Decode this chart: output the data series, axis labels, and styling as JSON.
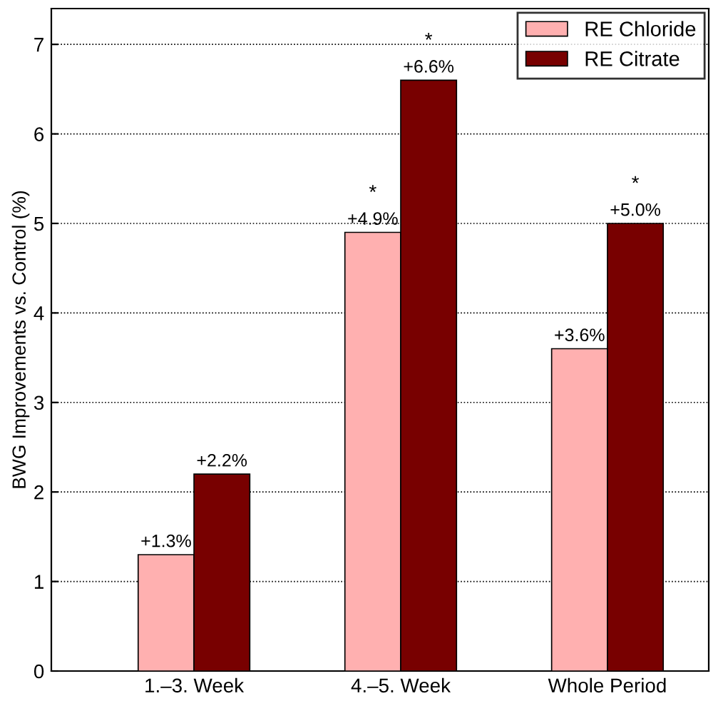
{
  "chart_data": {
    "type": "bar",
    "ylabel": "BWG Improvements vs. Control (%)",
    "categories": [
      "1.–3. Week",
      "4.–5. Week",
      "Whole Period"
    ],
    "series": [
      {
        "name": "RE Chloride",
        "color": "#ffb0b0",
        "values": [
          1.3,
          4.9,
          3.6
        ],
        "value_labels": [
          "+1.3%",
          "+4.9%",
          "+3.6%"
        ]
      },
      {
        "name": "RE Citrate",
        "color": "#780000",
        "values": [
          2.2,
          6.6,
          5.0
        ],
        "value_labels": [
          "+2.2%",
          "+6.6%",
          "+5.0%"
        ]
      }
    ],
    "annotations": [
      {
        "text": "*",
        "x": "4.–5. Week",
        "y": 4.9
      },
      {
        "text": "*",
        "x": "4.–5. Week",
        "y": 6.6
      },
      {
        "text": "*",
        "x": "Whole Period",
        "y": 5.0
      }
    ],
    "ylim": [
      0,
      7.4
    ],
    "yticks": [
      0,
      1,
      2,
      3,
      4,
      5,
      6,
      7
    ],
    "grid": "y",
    "legend": "top right"
  }
}
